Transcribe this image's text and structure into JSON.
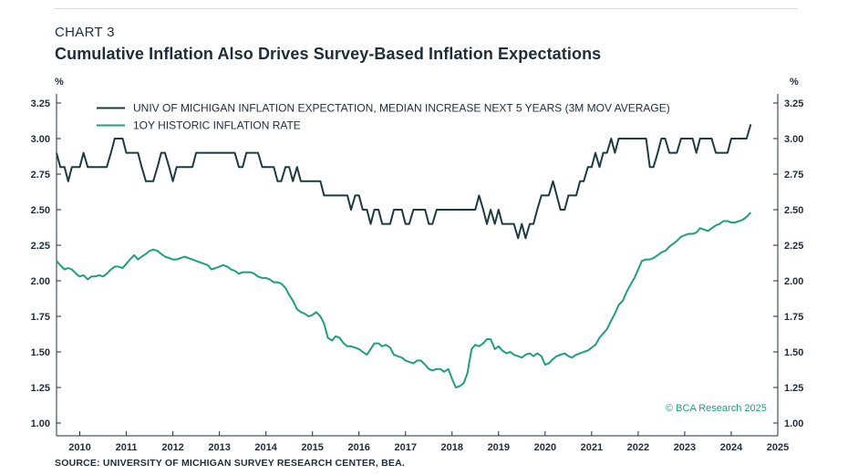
{
  "header": {
    "chart_label": "CHART 3",
    "title": "Cumulative Inflation Also Drives Survey-Based Inflation Expectations"
  },
  "units": {
    "left": "%",
    "right": "%"
  },
  "source": "SOURCE: UNIVERSITY OF MICHIGAN SURVEY RESEARCH CENTER, BEA.",
  "copyright": "© BCA Research 2025",
  "colors": {
    "michigan": "#1c3b3f",
    "historic": "#1f9e80",
    "axis": "#1f2d3a",
    "text": "#1f2d3a"
  },
  "chart_data": {
    "type": "line",
    "xlim": [
      2009.5,
      2025
    ],
    "ylim": [
      1.0,
      3.25
    ],
    "yticks": [
      "1.00",
      "1.25",
      "1.50",
      "1.75",
      "2.00",
      "2.25",
      "2.50",
      "2.75",
      "3.00",
      "3.25"
    ],
    "xticks": [
      "2010",
      "2011",
      "2012",
      "2013",
      "2014",
      "2015",
      "2016",
      "2017",
      "2018",
      "2019",
      "2020",
      "2021",
      "2022",
      "2023",
      "2024",
      "2025"
    ],
    "grid": false,
    "legend": "top-left",
    "series": [
      {
        "name": "UNIV OF MICHIGAN INFLATION EXPECTATION, MEDIAN INCREASE NEXT 5 YEARS (3M MOV AVERAGE)",
        "color": "#1c3b3f",
        "x": [
          2009.5,
          2009.58,
          2009.67,
          2009.75,
          2009.83,
          2009.92,
          2010.0,
          2010.08,
          2010.17,
          2010.25,
          2010.33,
          2010.42,
          2010.5,
          2010.58,
          2010.67,
          2010.75,
          2010.83,
          2010.92,
          2011.0,
          2011.08,
          2011.17,
          2011.25,
          2011.33,
          2011.42,
          2011.5,
          2011.58,
          2011.67,
          2011.75,
          2011.83,
          2011.92,
          2012.0,
          2012.08,
          2012.17,
          2012.25,
          2012.33,
          2012.42,
          2012.5,
          2012.58,
          2012.67,
          2012.75,
          2012.83,
          2012.92,
          2013.0,
          2013.08,
          2013.17,
          2013.25,
          2013.33,
          2013.42,
          2013.5,
          2013.58,
          2013.67,
          2013.75,
          2013.83,
          2013.92,
          2014.0,
          2014.08,
          2014.17,
          2014.25,
          2014.33,
          2014.42,
          2014.5,
          2014.58,
          2014.67,
          2014.75,
          2014.83,
          2014.92,
          2015.0,
          2015.08,
          2015.17,
          2015.25,
          2015.33,
          2015.42,
          2015.5,
          2015.58,
          2015.67,
          2015.75,
          2015.83,
          2015.92,
          2016.0,
          2016.08,
          2016.17,
          2016.25,
          2016.33,
          2016.42,
          2016.5,
          2016.58,
          2016.67,
          2016.75,
          2016.83,
          2016.92,
          2017.0,
          2017.08,
          2017.17,
          2017.25,
          2017.33,
          2017.42,
          2017.5,
          2017.58,
          2017.67,
          2017.75,
          2017.83,
          2017.92,
          2018.0,
          2018.08,
          2018.17,
          2018.25,
          2018.33,
          2018.42,
          2018.5,
          2018.58,
          2018.67,
          2018.75,
          2018.83,
          2018.92,
          2019.0,
          2019.08,
          2019.17,
          2019.25,
          2019.33,
          2019.42,
          2019.5,
          2019.58,
          2019.67,
          2019.75,
          2019.83,
          2019.92,
          2020.0,
          2020.08,
          2020.17,
          2020.25,
          2020.33,
          2020.42,
          2020.5,
          2020.58,
          2020.67,
          2020.75,
          2020.83,
          2020.92,
          2021.0,
          2021.08,
          2021.17,
          2021.25,
          2021.33,
          2021.42,
          2021.5,
          2021.58,
          2021.67,
          2021.75,
          2021.83,
          2021.92,
          2022.0,
          2022.08,
          2022.17,
          2022.25,
          2022.33,
          2022.42,
          2022.5,
          2022.58,
          2022.67,
          2022.75,
          2022.83,
          2022.92,
          2023.0,
          2023.08,
          2023.17,
          2023.25,
          2023.33,
          2023.42,
          2023.5,
          2023.58,
          2023.67,
          2023.75,
          2023.83,
          2023.92,
          2024.0,
          2024.08,
          2024.17,
          2024.25,
          2024.33,
          2024.42
        ],
        "y": [
          2.9,
          2.8,
          2.8,
          2.7,
          2.8,
          2.8,
          2.8,
          2.9,
          2.8,
          2.8,
          2.8,
          2.8,
          2.8,
          2.8,
          2.9,
          3.0,
          3.0,
          3.0,
          2.9,
          2.9,
          2.9,
          2.9,
          2.8,
          2.7,
          2.7,
          2.7,
          2.8,
          2.9,
          2.9,
          2.8,
          2.7,
          2.8,
          2.8,
          2.8,
          2.8,
          2.8,
          2.9,
          2.9,
          2.9,
          2.9,
          2.9,
          2.9,
          2.9,
          2.9,
          2.9,
          2.9,
          2.9,
          2.8,
          2.8,
          2.9,
          2.9,
          2.9,
          2.9,
          2.8,
          2.8,
          2.8,
          2.8,
          2.7,
          2.7,
          2.8,
          2.8,
          2.7,
          2.8,
          2.7,
          2.7,
          2.7,
          2.7,
          2.7,
          2.7,
          2.6,
          2.6,
          2.6,
          2.6,
          2.6,
          2.6,
          2.6,
          2.5,
          2.6,
          2.6,
          2.5,
          2.5,
          2.4,
          2.5,
          2.5,
          2.4,
          2.4,
          2.4,
          2.5,
          2.5,
          2.5,
          2.4,
          2.4,
          2.5,
          2.5,
          2.5,
          2.5,
          2.4,
          2.4,
          2.5,
          2.5,
          2.5,
          2.5,
          2.5,
          2.5,
          2.5,
          2.5,
          2.5,
          2.5,
          2.5,
          2.6,
          2.5,
          2.4,
          2.5,
          2.4,
          2.5,
          2.4,
          2.4,
          2.4,
          2.4,
          2.3,
          2.4,
          2.3,
          2.4,
          2.4,
          2.5,
          2.6,
          2.6,
          2.6,
          2.7,
          2.6,
          2.5,
          2.5,
          2.6,
          2.6,
          2.6,
          2.7,
          2.7,
          2.8,
          2.8,
          2.9,
          2.8,
          2.9,
          2.9,
          3.0,
          2.9,
          3.0,
          3.0,
          3.0,
          3.0,
          3.0,
          3.0,
          3.0,
          3.0,
          2.8,
          2.8,
          2.9,
          3.0,
          3.0,
          2.9,
          2.9,
          2.9,
          3.0,
          3.0,
          3.0,
          3.0,
          2.9,
          3.0,
          3.0,
          3.0,
          3.0,
          2.9,
          2.9,
          2.9,
          2.9,
          3.0,
          3.0,
          3.0,
          3.0,
          3.0,
          3.1
        ]
      },
      {
        "name": "1OY HISTORIC INFLATION RATE",
        "color": "#1f9e80",
        "x": [
          2009.5,
          2009.58,
          2009.67,
          2009.75,
          2009.83,
          2009.92,
          2010.0,
          2010.08,
          2010.17,
          2010.25,
          2010.33,
          2010.42,
          2010.5,
          2010.58,
          2010.67,
          2010.75,
          2010.83,
          2010.92,
          2011.0,
          2011.08,
          2011.17,
          2011.25,
          2011.33,
          2011.42,
          2011.5,
          2011.58,
          2011.67,
          2011.75,
          2011.83,
          2011.92,
          2012.0,
          2012.08,
          2012.17,
          2012.25,
          2012.33,
          2012.42,
          2012.5,
          2012.58,
          2012.67,
          2012.75,
          2012.83,
          2012.92,
          2013.0,
          2013.08,
          2013.17,
          2013.25,
          2013.33,
          2013.42,
          2013.5,
          2013.58,
          2013.67,
          2013.75,
          2013.83,
          2013.92,
          2014.0,
          2014.08,
          2014.17,
          2014.25,
          2014.33,
          2014.42,
          2014.5,
          2014.58,
          2014.67,
          2014.75,
          2014.83,
          2014.92,
          2015.0,
          2015.08,
          2015.17,
          2015.25,
          2015.33,
          2015.42,
          2015.5,
          2015.58,
          2015.67,
          2015.75,
          2015.83,
          2015.92,
          2016.0,
          2016.08,
          2016.17,
          2016.25,
          2016.33,
          2016.42,
          2016.5,
          2016.58,
          2016.67,
          2016.75,
          2016.83,
          2016.92,
          2017.0,
          2017.08,
          2017.17,
          2017.25,
          2017.33,
          2017.42,
          2017.5,
          2017.58,
          2017.67,
          2017.75,
          2017.83,
          2017.92,
          2018.0,
          2018.08,
          2018.17,
          2018.25,
          2018.33,
          2018.42,
          2018.5,
          2018.58,
          2018.67,
          2018.75,
          2018.83,
          2018.92,
          2019.0,
          2019.08,
          2019.17,
          2019.25,
          2019.33,
          2019.42,
          2019.5,
          2019.58,
          2019.67,
          2019.75,
          2019.83,
          2019.92,
          2020.0,
          2020.08,
          2020.17,
          2020.25,
          2020.33,
          2020.42,
          2020.5,
          2020.58,
          2020.67,
          2020.75,
          2020.83,
          2020.92,
          2021.0,
          2021.08,
          2021.17,
          2021.25,
          2021.33,
          2021.42,
          2021.5,
          2021.58,
          2021.67,
          2021.75,
          2021.83,
          2021.92,
          2022.0,
          2022.08,
          2022.17,
          2022.25,
          2022.33,
          2022.42,
          2022.5,
          2022.58,
          2022.67,
          2022.75,
          2022.83,
          2022.92,
          2023.0,
          2023.08,
          2023.17,
          2023.25,
          2023.33,
          2023.42,
          2023.5,
          2023.58,
          2023.67,
          2023.75,
          2023.83,
          2023.92,
          2024.0,
          2024.08,
          2024.17,
          2024.25,
          2024.33,
          2024.42
        ],
        "y": [
          2.14,
          2.11,
          2.08,
          2.09,
          2.08,
          2.05,
          2.03,
          2.04,
          2.01,
          2.03,
          2.03,
          2.04,
          2.03,
          2.05,
          2.08,
          2.1,
          2.1,
          2.09,
          2.12,
          2.15,
          2.18,
          2.15,
          2.17,
          2.19,
          2.21,
          2.22,
          2.21,
          2.19,
          2.17,
          2.16,
          2.15,
          2.15,
          2.16,
          2.17,
          2.16,
          2.15,
          2.14,
          2.13,
          2.12,
          2.11,
          2.08,
          2.09,
          2.1,
          2.11,
          2.1,
          2.08,
          2.07,
          2.05,
          2.06,
          2.06,
          2.06,
          2.05,
          2.03,
          2.02,
          2.02,
          2.01,
          1.99,
          1.99,
          1.98,
          1.95,
          1.9,
          1.86,
          1.8,
          1.78,
          1.77,
          1.75,
          1.76,
          1.78,
          1.75,
          1.7,
          1.6,
          1.58,
          1.61,
          1.6,
          1.56,
          1.54,
          1.54,
          1.53,
          1.52,
          1.5,
          1.48,
          1.52,
          1.56,
          1.56,
          1.54,
          1.55,
          1.53,
          1.48,
          1.47,
          1.46,
          1.44,
          1.43,
          1.42,
          1.44,
          1.44,
          1.41,
          1.38,
          1.37,
          1.38,
          1.38,
          1.36,
          1.38,
          1.31,
          1.25,
          1.26,
          1.28,
          1.35,
          1.52,
          1.55,
          1.54,
          1.56,
          1.59,
          1.59,
          1.52,
          1.54,
          1.51,
          1.49,
          1.5,
          1.48,
          1.47,
          1.46,
          1.48,
          1.49,
          1.47,
          1.49,
          1.47,
          1.41,
          1.42,
          1.45,
          1.47,
          1.48,
          1.49,
          1.47,
          1.46,
          1.48,
          1.49,
          1.5,
          1.51,
          1.53,
          1.55,
          1.6,
          1.63,
          1.66,
          1.72,
          1.77,
          1.83,
          1.86,
          1.92,
          1.97,
          2.02,
          2.08,
          2.14,
          2.15,
          2.15,
          2.16,
          2.18,
          2.2,
          2.21,
          2.24,
          2.26,
          2.28,
          2.31,
          2.32,
          2.33,
          2.33,
          2.34,
          2.37,
          2.36,
          2.35,
          2.37,
          2.39,
          2.4,
          2.42,
          2.42,
          2.41,
          2.41,
          2.42,
          2.43,
          2.45,
          2.48
        ]
      }
    ]
  }
}
